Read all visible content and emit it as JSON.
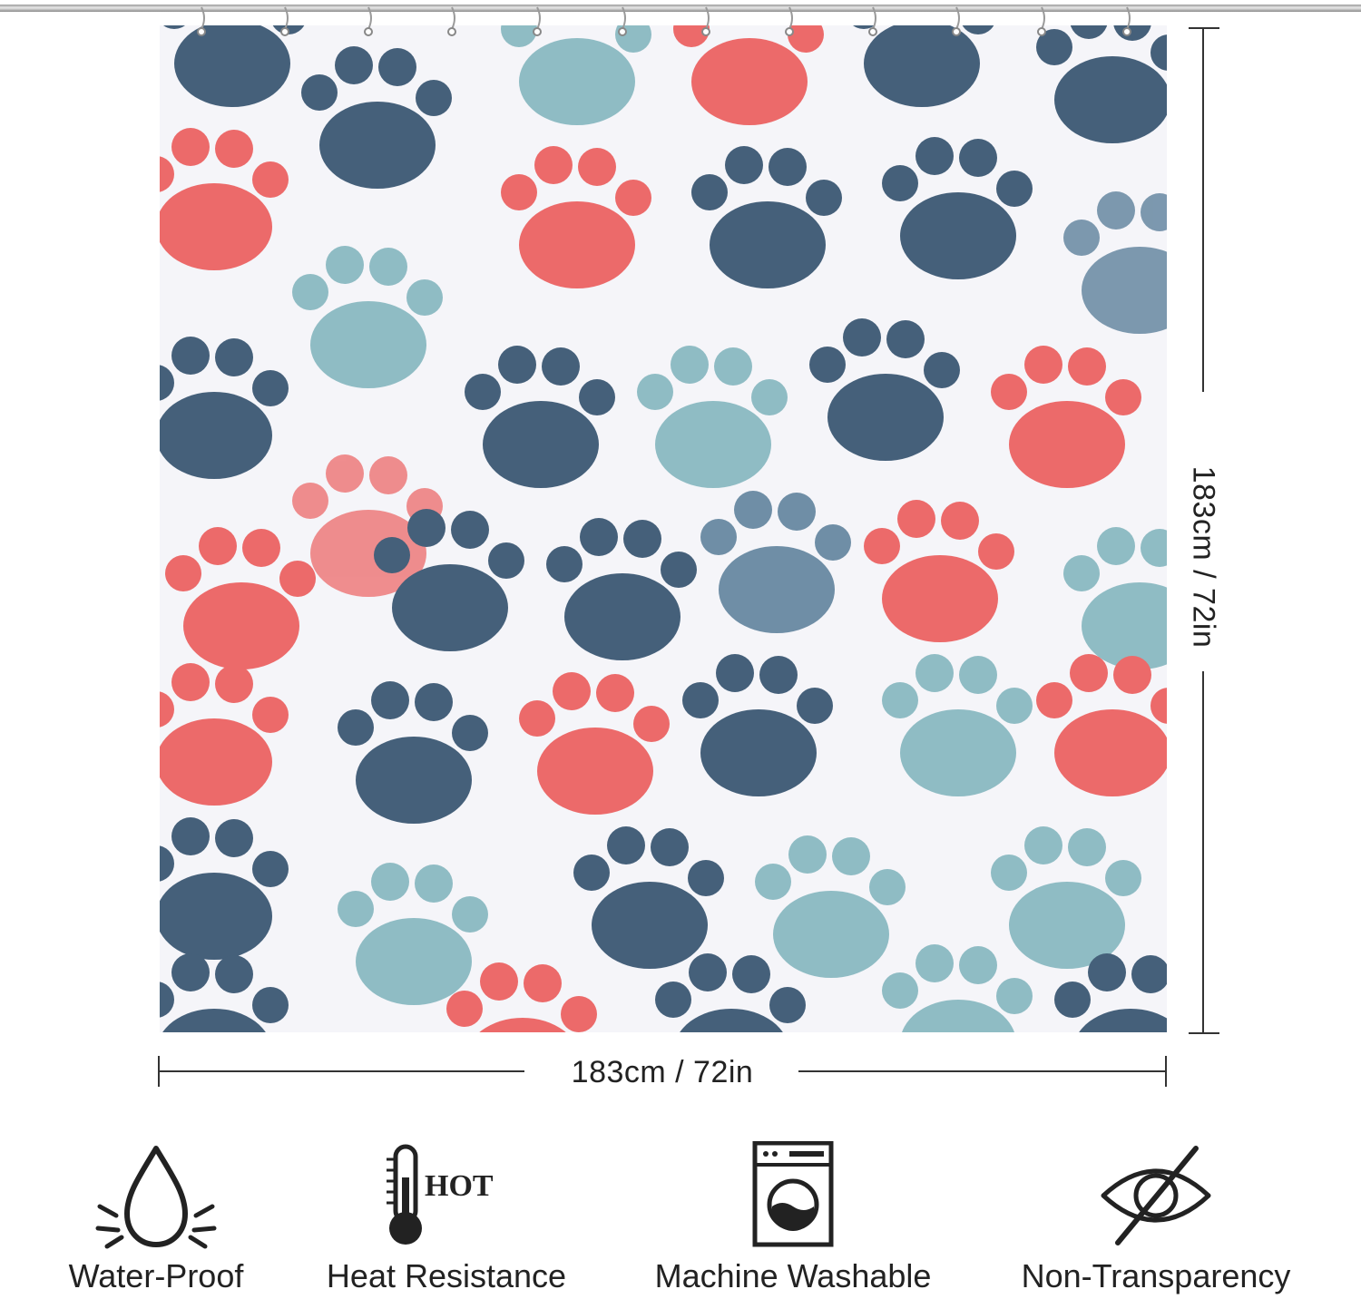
{
  "dimensions": {
    "width_label": "183cm / 72in",
    "height_label": "183cm / 72in"
  },
  "features": [
    {
      "label": "Water-Proof",
      "icon": "water-drop-icon"
    },
    {
      "label": "Heat Resistance",
      "icon": "thermometer-icon",
      "icon_text": "HOT"
    },
    {
      "label": "Machine Washable",
      "icon": "washing-machine-icon"
    },
    {
      "label": "Non-Transparency",
      "icon": "eye-slash-icon"
    }
  ],
  "colors": {
    "navy": "#45607a",
    "coral": "#ec6a6a",
    "teal": "#8fbcc4",
    "slate": "#6f8ea6",
    "background": "#f5f5f9"
  }
}
